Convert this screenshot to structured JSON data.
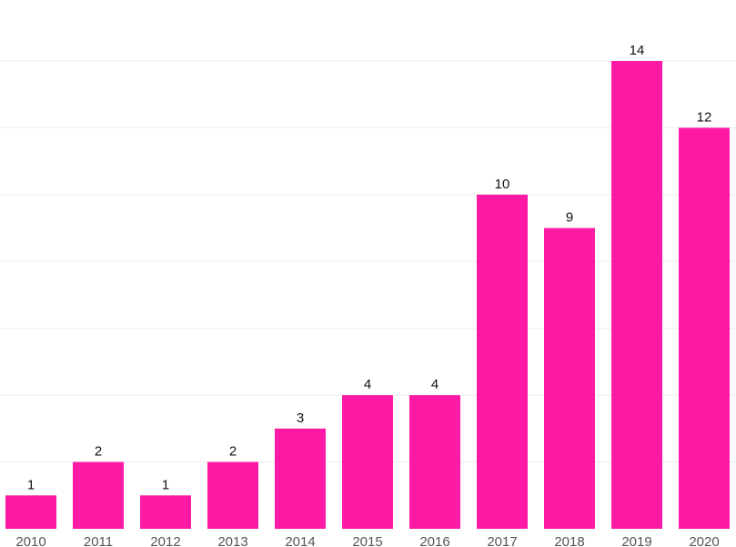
{
  "chart_data": {
    "type": "bar",
    "categories": [
      "2010",
      "2011",
      "2012",
      "2013",
      "2014",
      "2015",
      "2016",
      "2017",
      "2018",
      "2019",
      "2020"
    ],
    "values": [
      1,
      2,
      1,
      2,
      3,
      4,
      4,
      10,
      9,
      14,
      12
    ],
    "value_labels": [
      "1",
      "2",
      "1",
      "2",
      "3",
      "4",
      "4",
      "10",
      "9",
      "14",
      "12"
    ],
    "ylim": [
      0,
      14
    ],
    "gridline_step": 2,
    "grid": true,
    "bar_color": "#ff1aa6"
  }
}
